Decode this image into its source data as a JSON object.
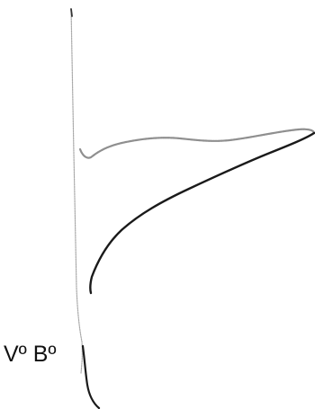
{
  "document": {
    "approval_label": "Vº Bº"
  },
  "signature": {
    "ink_color": "#1a1a1a",
    "faint_ink_color": "#9a9a9a"
  }
}
